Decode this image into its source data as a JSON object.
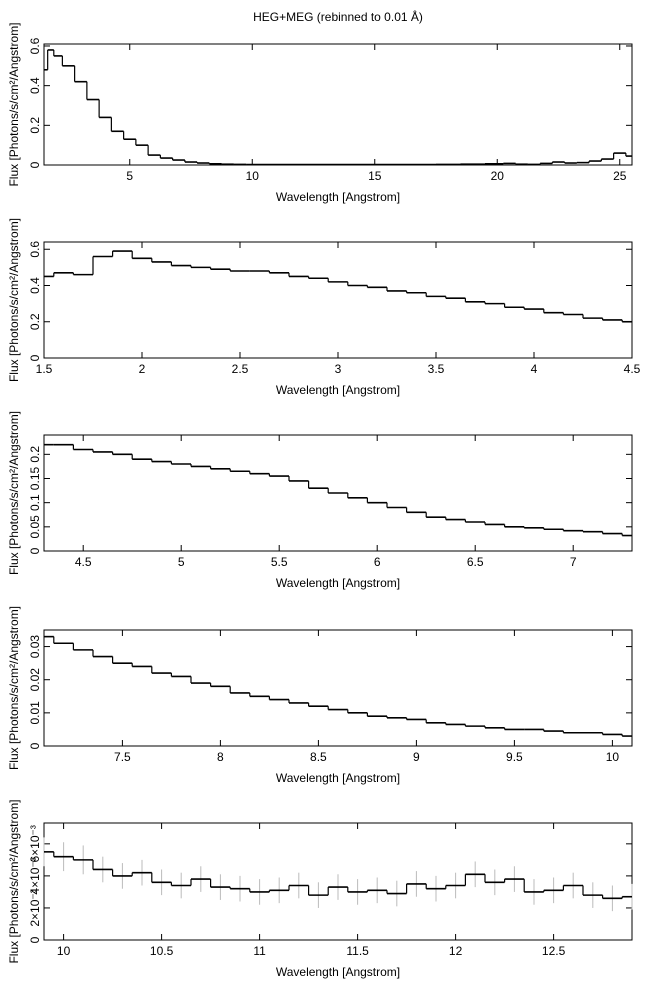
{
  "chart_data": [
    {
      "type": "line",
      "drawstyle": "steps",
      "title": "HEG+MEG (rebinned to 0.01 Å)",
      "xlabel": "Wavelength [Angstrom]",
      "ylabel": "Flux [Photons/s/cm²/Angstrom]",
      "color": "#000000",
      "x": [
        1.5,
        1.8,
        2,
        2.5,
        3,
        3.5,
        4,
        4.5,
        5,
        5.5,
        6,
        6.5,
        7,
        7.5,
        8,
        8.5,
        9,
        9.5,
        10,
        11,
        12,
        13,
        14,
        15,
        16,
        17,
        18,
        19,
        20,
        20.5,
        21,
        21.5,
        22,
        22.5,
        23,
        23.5,
        24,
        24.5,
        25,
        25.5
      ],
      "values": [
        0.48,
        0.58,
        0.55,
        0.5,
        0.42,
        0.33,
        0.24,
        0.17,
        0.13,
        0.1,
        0.05,
        0.035,
        0.025,
        0.015,
        0.01,
        0.006,
        0.004,
        0.003,
        0.002,
        0.002,
        0.002,
        0.002,
        0.002,
        0.002,
        0.002,
        0.002,
        0.003,
        0.004,
        0.006,
        0.008,
        0.004,
        0.003,
        0.008,
        0.015,
        0.01,
        0.012,
        0.02,
        0.03,
        0.06,
        0.045
      ],
      "xlim": [
        1.5,
        25.5
      ],
      "xticks": [
        5,
        10,
        15,
        20,
        25
      ],
      "ylim": [
        0,
        0.61
      ],
      "yticks": [
        0,
        0.2,
        0.4,
        0.6
      ]
    },
    {
      "type": "line",
      "drawstyle": "steps",
      "xlabel": "Wavelength [Angstrom]",
      "ylabel": "Flux [Photons/s/cm²/Angstrom]",
      "color": "#000000",
      "x": [
        1.5,
        1.6,
        1.7,
        1.8,
        1.9,
        2,
        2.1,
        2.2,
        2.3,
        2.4,
        2.5,
        2.6,
        2.7,
        2.8,
        2.9,
        3,
        3.1,
        3.2,
        3.3,
        3.4,
        3.5,
        3.6,
        3.7,
        3.8,
        3.9,
        4,
        4.1,
        4.2,
        4.3,
        4.4,
        4.5
      ],
      "values": [
        0.45,
        0.47,
        0.46,
        0.56,
        0.59,
        0.55,
        0.53,
        0.51,
        0.5,
        0.49,
        0.48,
        0.48,
        0.47,
        0.45,
        0.44,
        0.42,
        0.4,
        0.39,
        0.37,
        0.36,
        0.34,
        0.33,
        0.31,
        0.3,
        0.28,
        0.27,
        0.25,
        0.24,
        0.22,
        0.21,
        0.2
      ],
      "xlim": [
        1.5,
        4.5
      ],
      "xticks": [
        1.5,
        2,
        2.5,
        3,
        3.5,
        4,
        4.5
      ],
      "ylim": [
        0,
        0.64
      ],
      "yticks": [
        0,
        0.2,
        0.4,
        0.6
      ]
    },
    {
      "type": "line",
      "drawstyle": "steps",
      "xlabel": "Wavelength [Angstrom]",
      "ylabel": "Flux [Photons/s/cm²/Angstrom]",
      "color": "#000000",
      "x": [
        4.3,
        4.4,
        4.5,
        4.6,
        4.7,
        4.8,
        4.9,
        5,
        5.1,
        5.2,
        5.3,
        5.4,
        5.5,
        5.6,
        5.7,
        5.8,
        5.9,
        6,
        6.1,
        6.2,
        6.3,
        6.4,
        6.5,
        6.6,
        6.7,
        6.8,
        6.9,
        7,
        7.1,
        7.2,
        7.3
      ],
      "values": [
        0.22,
        0.22,
        0.21,
        0.205,
        0.2,
        0.19,
        0.185,
        0.18,
        0.175,
        0.17,
        0.165,
        0.16,
        0.155,
        0.145,
        0.13,
        0.12,
        0.11,
        0.1,
        0.09,
        0.08,
        0.07,
        0.065,
        0.06,
        0.055,
        0.05,
        0.048,
        0.045,
        0.042,
        0.04,
        0.036,
        0.032
      ],
      "xlim": [
        4.3,
        7.3
      ],
      "xticks": [
        4.5,
        5,
        5.5,
        6,
        6.5,
        7
      ],
      "ylim": [
        0,
        0.24
      ],
      "yticks": [
        0,
        0.05,
        0.1,
        0.15,
        0.2
      ]
    },
    {
      "type": "line",
      "drawstyle": "steps",
      "xlabel": "Wavelength [Angstrom]",
      "ylabel": "Flux [Photons/s/cm²/Angstrom]",
      "color": "#000000",
      "x": [
        7.1,
        7.2,
        7.3,
        7.4,
        7.5,
        7.6,
        7.7,
        7.8,
        7.9,
        8,
        8.1,
        8.2,
        8.3,
        8.4,
        8.5,
        8.6,
        8.7,
        8.8,
        8.9,
        9,
        9.1,
        9.2,
        9.3,
        9.4,
        9.5,
        9.6,
        9.7,
        9.8,
        9.9,
        10,
        10.1
      ],
      "values": [
        0.033,
        0.031,
        0.029,
        0.027,
        0.025,
        0.024,
        0.022,
        0.021,
        0.019,
        0.018,
        0.016,
        0.015,
        0.014,
        0.013,
        0.012,
        0.011,
        0.01,
        0.009,
        0.0085,
        0.008,
        0.007,
        0.0065,
        0.006,
        0.0055,
        0.005,
        0.005,
        0.0045,
        0.004,
        0.004,
        0.0035,
        0.003
      ],
      "xlim": [
        7.1,
        10.1
      ],
      "xticks": [
        7.5,
        8,
        8.5,
        9,
        9.5,
        10
      ],
      "ylim": [
        0,
        0.035
      ],
      "yticks": [
        0,
        0.01,
        0.02,
        0.03
      ]
    },
    {
      "type": "line",
      "drawstyle": "steps",
      "xlabel": "Wavelength [Angstrom]",
      "ylabel": "Flux [Photons/s/cm²/Angstrom]",
      "color": "#000000",
      "error_color": "#bbbbbb",
      "x": [
        9.9,
        10,
        10.1,
        10.2,
        10.3,
        10.4,
        10.5,
        10.6,
        10.7,
        10.8,
        10.9,
        11,
        11.1,
        11.2,
        11.3,
        11.4,
        11.5,
        11.6,
        11.7,
        11.8,
        11.9,
        12,
        12.1,
        12.2,
        12.3,
        12.4,
        12.5,
        12.6,
        12.7,
        12.8,
        12.9
      ],
      "values": [
        0.0055,
        0.0052,
        0.005,
        0.0044,
        0.004,
        0.0042,
        0.0036,
        0.0034,
        0.0038,
        0.0033,
        0.0032,
        0.003,
        0.0031,
        0.0034,
        0.0028,
        0.0033,
        0.003,
        0.0031,
        0.0029,
        0.0035,
        0.0032,
        0.0034,
        0.0041,
        0.0036,
        0.0038,
        0.003,
        0.0031,
        0.0034,
        0.0028,
        0.0026,
        0.0027
      ],
      "errors": [
        0.0009,
        0.0009,
        0.0009,
        0.0008,
        0.0008,
        0.0008,
        0.0008,
        0.0008,
        0.0008,
        0.0008,
        0.0008,
        0.0008,
        0.0008,
        0.0008,
        0.0008,
        0.0008,
        0.0008,
        0.0008,
        0.0008,
        0.0008,
        0.0008,
        0.0008,
        0.0008,
        0.0008,
        0.0008,
        0.0008,
        0.0008,
        0.0008,
        0.0008,
        0.0008,
        0.0008
      ],
      "xlim": [
        9.9,
        12.9
      ],
      "xticks": [
        10,
        10.5,
        11,
        11.5,
        12,
        12.5
      ],
      "ylim": [
        0,
        0.0073
      ],
      "yticks": [
        0,
        {
          "value": 0.002,
          "label": "2×10⁻³"
        },
        {
          "value": 0.004,
          "label": "4×10⁻³"
        },
        {
          "value": 0.006,
          "label": "6×10⁻³"
        }
      ]
    }
  ]
}
